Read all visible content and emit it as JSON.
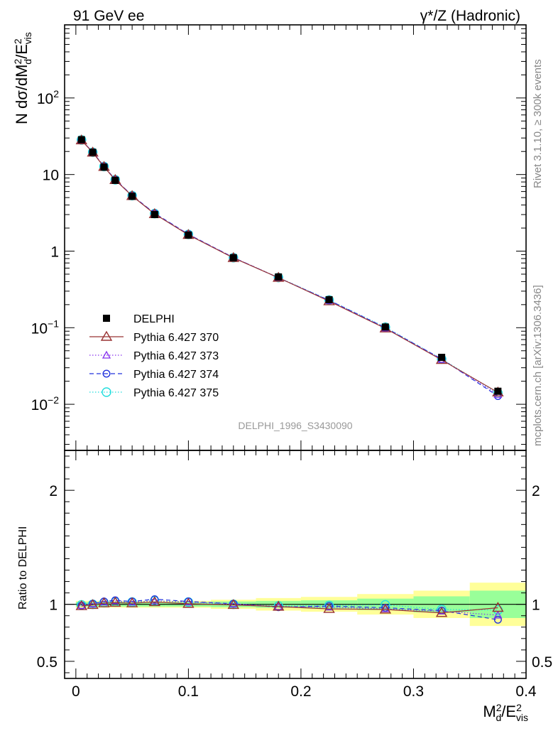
{
  "header": {
    "left": "91 GeV ee",
    "right": "γ*/Z (Hadronic)"
  },
  "side_labels": {
    "rivet": "Rivet 3.1.10, ≥ 300k events",
    "mcplots": "mcplots.cern.ch [arXiv:1306.3436]"
  },
  "analysis_id": "DELPHI_1996_S3430090",
  "colors": {
    "data": "#000000",
    "p370": "#993333",
    "p373": "#8833ee",
    "p374": "#2233dd",
    "p375": "#22dddd",
    "band_outer": "#ffff99",
    "band_inner": "#99ff99"
  },
  "chart_data": [
    {
      "type": "line",
      "title": "",
      "ylabel": "N dσ/dM²d/E²vis",
      "ylabel_parts": {
        "main": "N dσ/dM",
        "sup1": "2",
        "sub1": "d",
        "mid": "/E",
        "sup2": "2",
        "sub2": "vis"
      },
      "yscale": "log",
      "ylim": [
        0.0025,
        900
      ],
      "xlim": [
        -0.01,
        0.4
      ],
      "y_tick_labels": [
        {
          "value": 100,
          "base": "10",
          "exp": "2"
        },
        {
          "value": 10,
          "text": "10"
        },
        {
          "value": 1,
          "text": "1"
        },
        {
          "value": 0.1,
          "base": "10",
          "exp": "−1"
        },
        {
          "value": 0.01,
          "base": "10",
          "exp": "−2"
        }
      ],
      "x": [
        0.005,
        0.015,
        0.025,
        0.035,
        0.05,
        0.07,
        0.1,
        0.14,
        0.18,
        0.225,
        0.275,
        0.325,
        0.375
      ],
      "legend": "left-middle",
      "series": [
        {
          "key": "data",
          "name": "DELPHI",
          "marker": "square",
          "dash": "",
          "values": [
            28.5,
            19.5,
            12.5,
            8.4,
            5.2,
            3.0,
            1.62,
            0.82,
            0.46,
            0.232,
            0.102,
            0.041,
            0.0148
          ]
        },
        {
          "key": "p370",
          "name": "Pythia 6.427 370",
          "marker": "triangle",
          "dash": "",
          "values": [
            28.0,
            19.4,
            12.6,
            8.5,
            5.25,
            3.05,
            1.63,
            0.815,
            0.45,
            0.222,
            0.098,
            0.038,
            0.0143
          ]
        },
        {
          "key": "p373",
          "name": "Pythia 6.427 373",
          "marker": "triangle-small",
          "dash": "1.5,2.5",
          "values": [
            28.0,
            19.6,
            12.7,
            8.6,
            5.3,
            3.08,
            1.65,
            0.825,
            0.45,
            0.226,
            0.099,
            0.0385,
            0.0134
          ]
        },
        {
          "key": "p374",
          "name": "Pythia 6.427 374",
          "marker": "circle",
          "dash": "6,4",
          "values": [
            28.1,
            19.6,
            12.8,
            8.6,
            5.32,
            3.12,
            1.66,
            0.825,
            0.448,
            0.228,
            0.1,
            0.039,
            0.0128
          ]
        },
        {
          "key": "p375",
          "name": "Pythia 6.427 375",
          "marker": "circle-big",
          "dash": "1.5,2.5",
          "values": [
            28.3,
            19.5,
            12.7,
            8.55,
            5.3,
            3.09,
            1.65,
            0.82,
            0.452,
            0.23,
            0.1015,
            0.039,
            0.014
          ]
        }
      ]
    },
    {
      "type": "line",
      "title": "",
      "xlabel": "M²d/E²vis",
      "xlabel_parts": {
        "main": "M",
        "sup1": "2",
        "sub1": "d",
        "mid": "/E",
        "sup2": "2",
        "sub2": "vis"
      },
      "ylabel": "Ratio to DELPHI",
      "ylim": [
        0.35,
        2.35
      ],
      "xlim": [
        -0.01,
        0.4
      ],
      "x_tick_labels": [
        "0",
        "0.1",
        "0.2",
        "0.3",
        "0.4"
      ],
      "x_tick_values": [
        0,
        0.1,
        0.2,
        0.3,
        0.4
      ],
      "y_tick_labels": [
        "0.5",
        "1",
        "2"
      ],
      "y_tick_values": [
        0.5,
        1,
        2
      ],
      "bins": [
        [
          0.0,
          0.01
        ],
        [
          0.01,
          0.02
        ],
        [
          0.02,
          0.03
        ],
        [
          0.03,
          0.04
        ],
        [
          0.04,
          0.06
        ],
        [
          0.06,
          0.08
        ],
        [
          0.08,
          0.12
        ],
        [
          0.12,
          0.16
        ],
        [
          0.16,
          0.2
        ],
        [
          0.2,
          0.25
        ],
        [
          0.25,
          0.3
        ],
        [
          0.3,
          0.35
        ],
        [
          0.35,
          0.4
        ]
      ],
      "band_inner": [
        0.02,
        0.02,
        0.02,
        0.02,
        0.02,
        0.02,
        0.02,
        0.025,
        0.03,
        0.035,
        0.05,
        0.07,
        0.12
      ],
      "band_outer": [
        0.03,
        0.03,
        0.03,
        0.03,
        0.03,
        0.03,
        0.03,
        0.04,
        0.055,
        0.065,
        0.09,
        0.12,
        0.19
      ],
      "x": [
        0.005,
        0.015,
        0.025,
        0.035,
        0.05,
        0.07,
        0.1,
        0.14,
        0.18,
        0.225,
        0.275,
        0.325,
        0.375
      ],
      "series": [
        {
          "key": "p370",
          "name": "Pythia 6.427 370",
          "marker": "triangle",
          "dash": "",
          "values": [
            0.985,
            0.995,
            1.01,
            1.015,
            1.01,
            1.02,
            1.005,
            0.995,
            0.98,
            0.96,
            0.955,
            0.925,
            0.97
          ]
        },
        {
          "key": "p373",
          "name": "Pythia 6.427 373",
          "marker": "triangle-small",
          "dash": "1.5,2.5",
          "values": [
            0.99,
            1.005,
            1.02,
            1.03,
            1.02,
            1.03,
            1.02,
            1.005,
            0.98,
            0.975,
            0.96,
            0.94,
            0.905
          ]
        },
        {
          "key": "p374",
          "name": "Pythia 6.427 374",
          "marker": "circle",
          "dash": "6,4",
          "values": [
            0.99,
            1.005,
            1.025,
            1.035,
            1.025,
            1.045,
            1.025,
            1.005,
            0.975,
            0.985,
            0.97,
            0.945,
            0.865
          ]
        },
        {
          "key": "p375",
          "name": "Pythia 6.427 375",
          "marker": "circle-big",
          "dash": "1.5,2.5",
          "values": [
            0.995,
            1.0,
            1.015,
            1.02,
            1.02,
            1.03,
            1.02,
            1.0,
            0.985,
            0.99,
            0.995,
            0.955,
            0.95
          ]
        }
      ]
    }
  ]
}
